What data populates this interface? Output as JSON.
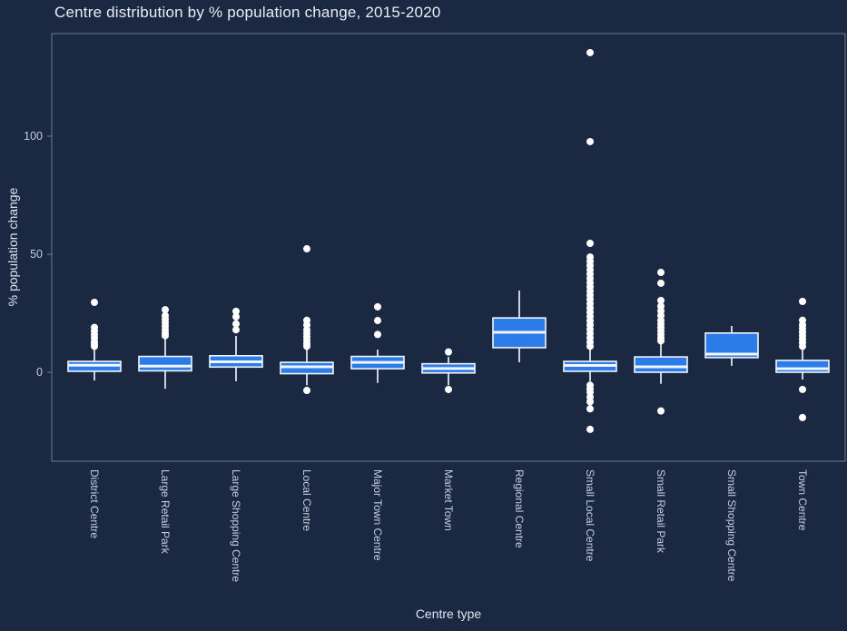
{
  "title": "Centre distribution by % population change, 2015-2020",
  "colors": {
    "background": "#1b2842",
    "box_fill": "#2b7ce8",
    "box_border": "#f2f6fa",
    "median": "#f2f6fa",
    "whisker": "#c9d2dc",
    "outlier": "#ffffff",
    "plot_border": "#6e7b8e",
    "text_primary": "#e7eef7",
    "text_secondary": "#c3cedb"
  },
  "chart_data": {
    "type": "box",
    "title": "Centre distribution by % population change, 2015-2020",
    "xlabel": "Centre type",
    "ylabel": "% population change",
    "ylim": [
      -38,
      143
    ],
    "yticks": [
      0,
      50,
      100
    ],
    "grid": false,
    "legend": false,
    "categories": [
      "District Centre",
      "Large Retail Park",
      "Large Shopping Centre",
      "Local Centre",
      "Major Town Centre",
      "Market Town",
      "Regional Centre",
      "Small Local Centre",
      "Small Retail Park",
      "Small Shopping Centre",
      "Town Centre"
    ],
    "series": [
      {
        "name": "District Centre",
        "whisker_low": -3.5,
        "q1": 0.4,
        "median": 3,
        "q3": 4.6,
        "whisker_high": 10,
        "outliers": [
          29.6,
          19,
          17.5,
          16,
          14.5,
          13,
          12,
          11
        ]
      },
      {
        "name": "Large Retail Park",
        "whisker_low": -7,
        "q1": 0.6,
        "median": 2.6,
        "q3": 6.7,
        "whisker_high": 14.5,
        "outliers": [
          26.5,
          24,
          22.5,
          21,
          19.5,
          18,
          16.5,
          15.5
        ]
      },
      {
        "name": "Large Shopping Centre",
        "whisker_low": -3.8,
        "q1": 2.2,
        "median": 4.4,
        "q3": 7,
        "whisker_high": 15.4,
        "outliers": [
          25.8,
          23.5,
          20.5,
          18
        ]
      },
      {
        "name": "Local Centre",
        "whisker_low": -5.5,
        "q1": -0.6,
        "median": 2.3,
        "q3": 4.2,
        "whisker_high": 10.8,
        "outliers": [
          52.3,
          22,
          20,
          18,
          16.5,
          15,
          13.5,
          12,
          11,
          -7.7
        ]
      },
      {
        "name": "Major Town Centre",
        "whisker_low": -4.5,
        "q1": 1.5,
        "median": 4.2,
        "q3": 6.7,
        "whisker_high": 9.6,
        "outliers": [
          27.7,
          21.9,
          16
        ]
      },
      {
        "name": "Market Town",
        "whisker_low": -5.5,
        "q1": -0.3,
        "median": 1.6,
        "q3": 3.6,
        "whisker_high": 6.5,
        "outliers": [
          8.6,
          -7.3
        ]
      },
      {
        "name": "Regional Centre",
        "whisker_low": 4.2,
        "q1": 10.4,
        "median": 16.9,
        "q3": 23,
        "whisker_high": 34.6,
        "outliers": []
      },
      {
        "name": "Small Local Centre",
        "whisker_low": -3.8,
        "q1": 0.4,
        "median": 2.9,
        "q3": 4.6,
        "whisker_high": 10,
        "outliers": [
          135.4,
          97.7,
          54.6,
          48.8,
          47,
          45.2,
          43.4,
          41.6,
          39.8,
          38,
          36.2,
          34.4,
          32.6,
          30.8,
          29,
          27.2,
          25.4,
          23.6,
          21.8,
          20,
          18.2,
          16.4,
          14.6,
          12.8,
          11,
          -5.5,
          -7,
          -8.5,
          -10.5,
          -12.5,
          -15.5,
          -24.2
        ]
      },
      {
        "name": "Small Retail Park",
        "whisker_low": -4.9,
        "q1": 0,
        "median": 2.3,
        "q3": 6.5,
        "whisker_high": 12.7,
        "outliers": [
          42.3,
          37.7,
          30.4,
          28,
          26,
          24,
          22,
          20.5,
          19,
          17.5,
          16,
          14.5,
          13.3,
          -16.4
        ]
      },
      {
        "name": "Small Shopping Centre",
        "whisker_low": 2.7,
        "q1": 6.2,
        "median": 7.7,
        "q3": 16.6,
        "whisker_high": 19.6,
        "outliers": []
      },
      {
        "name": "Town Centre",
        "whisker_low": -3.1,
        "q1": 0,
        "median": 1.5,
        "q3": 5,
        "whisker_high": 9.6,
        "outliers": [
          30,
          22,
          20,
          18.5,
          17,
          15.5,
          14,
          12.5,
          11,
          -7.3,
          -19.2
        ]
      }
    ]
  }
}
